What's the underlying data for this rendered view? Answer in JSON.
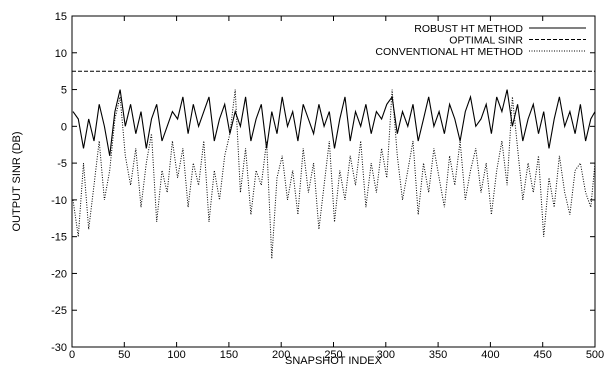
{
  "chart_data": {
    "type": "line",
    "title": "",
    "xlabel": "SNAPSHOT INDEX",
    "ylabel": "OUTPUT SINR (DB)",
    "xlim": [
      0,
      500
    ],
    "ylim": [
      -30,
      15
    ],
    "xticks": [
      0,
      50,
      100,
      150,
      200,
      250,
      300,
      350,
      400,
      450,
      500
    ],
    "yticks": [
      -30,
      -25,
      -20,
      -15,
      -10,
      -5,
      0,
      5,
      10,
      15
    ],
    "grid": false,
    "legend_position": "top-right",
    "series": [
      {
        "name": "ROBUST HT METHOD",
        "style": "solid",
        "x": [
          1,
          6,
          11,
          16,
          21,
          26,
          31,
          36,
          41,
          46,
          51,
          56,
          61,
          66,
          71,
          76,
          81,
          86,
          91,
          96,
          101,
          106,
          111,
          116,
          121,
          126,
          131,
          136,
          141,
          146,
          151,
          156,
          161,
          166,
          171,
          176,
          181,
          186,
          191,
          196,
          201,
          206,
          211,
          216,
          221,
          226,
          231,
          236,
          241,
          246,
          251,
          256,
          261,
          266,
          271,
          276,
          281,
          286,
          291,
          296,
          301,
          306,
          311,
          316,
          321,
          326,
          331,
          336,
          341,
          346,
          351,
          356,
          361,
          366,
          371,
          376,
          381,
          386,
          391,
          396,
          401,
          406,
          411,
          416,
          421,
          426,
          431,
          436,
          441,
          446,
          451,
          456,
          461,
          466,
          471,
          476,
          481,
          486,
          491,
          496,
          500
        ],
        "y": [
          2,
          1,
          -3,
          1,
          -2,
          3,
          0,
          -4,
          2,
          5,
          0,
          3,
          -1,
          2,
          -3,
          1,
          3,
          -2,
          0,
          2,
          1,
          4,
          -1,
          3,
          0,
          2,
          4,
          -2,
          1,
          3,
          -1,
          2,
          0,
          4,
          -2,
          1,
          3,
          -3,
          2,
          -1,
          4,
          0,
          2,
          -2,
          3,
          1,
          -1,
          3,
          0,
          2,
          -3,
          1,
          4,
          -2,
          2,
          0,
          3,
          -1,
          2,
          1,
          3,
          4,
          -1,
          2,
          0,
          3,
          -2,
          1,
          4,
          0,
          2,
          -1,
          3,
          1,
          -2,
          2,
          4,
          0,
          1,
          3,
          -1,
          4,
          2,
          5,
          0,
          3,
          -2,
          1,
          3,
          -1,
          2,
          -3,
          1,
          4,
          0,
          2,
          -1,
          3,
          -2,
          1,
          2
        ]
      },
      {
        "name": "OPTIMAL SINR",
        "style": "dashed",
        "x": [
          0,
          500
        ],
        "y": [
          7.5,
          7.5
        ]
      },
      {
        "name": "CONVENTIONAL HT METHOD",
        "style": "dotted",
        "x": [
          1,
          6,
          11,
          16,
          21,
          26,
          31,
          36,
          41,
          46,
          51,
          56,
          61,
          66,
          71,
          76,
          81,
          86,
          91,
          96,
          101,
          106,
          111,
          116,
          121,
          126,
          131,
          136,
          141,
          146,
          151,
          156,
          161,
          166,
          171,
          176,
          181,
          186,
          191,
          196,
          201,
          206,
          211,
          216,
          221,
          226,
          231,
          236,
          241,
          246,
          251,
          256,
          261,
          266,
          271,
          276,
          281,
          286,
          291,
          296,
          301,
          306,
          311,
          316,
          321,
          326,
          331,
          336,
          341,
          346,
          351,
          356,
          361,
          366,
          371,
          376,
          381,
          386,
          391,
          396,
          401,
          406,
          411,
          416,
          421,
          426,
          431,
          436,
          441,
          446,
          451,
          456,
          461,
          466,
          471,
          476,
          481,
          486,
          491,
          496,
          500
        ],
        "y": [
          -10,
          -15,
          -5,
          -14,
          -8,
          -2,
          -10,
          -6,
          1,
          4,
          -4,
          -8,
          -3,
          -11,
          -5,
          -1,
          -13,
          -6,
          -9,
          -2,
          -7,
          -3,
          -11,
          -5,
          -8,
          -2,
          -13,
          -6,
          -10,
          -4,
          -1,
          5,
          -9,
          -3,
          -12,
          -6,
          -8,
          -2,
          -18,
          -7,
          -4,
          -10,
          -6,
          -12,
          -3,
          -9,
          -5,
          -14,
          -8,
          -2,
          -13,
          -6,
          -10,
          -4,
          -8,
          -2,
          -11,
          -5,
          -9,
          -3,
          -7,
          5,
          -4,
          -10,
          -6,
          -2,
          -12,
          -5,
          -9,
          -3,
          -7,
          -11,
          -4,
          -8,
          -2,
          -10,
          -6,
          -3,
          -9,
          -5,
          -12,
          -6,
          -2,
          -8,
          4,
          -3,
          -10,
          -5,
          -9,
          -4,
          -15,
          -7,
          -11,
          -4,
          -9,
          -12,
          -6,
          -5,
          -9,
          -11,
          -5
        ]
      }
    ]
  }
}
